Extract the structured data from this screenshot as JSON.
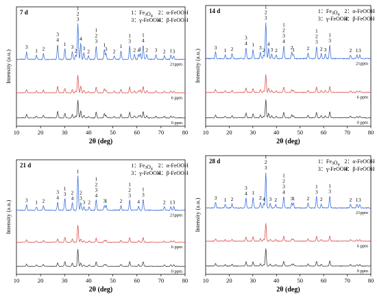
{
  "chart_data": [
    {
      "type": "line",
      "panel_label": "7 d",
      "legend": [
        "1：Fe3O4",
        "2：α-FeOOH",
        "3：γ-FeOOH",
        "4：β-FeOOH"
      ],
      "xlabel": "2θ (deg)",
      "ylabel": "Intensity (a.u.)",
      "xlim": [
        10,
        80
      ],
      "xticks": [
        10,
        20,
        30,
        40,
        50,
        60,
        70,
        80
      ],
      "series": [
        {
          "name": "21ppm",
          "color": "#3a6fd8"
        },
        {
          "name": "6 ppm",
          "color": "#d9534f"
        },
        {
          "name": "0 ppm",
          "color": "#404040"
        }
      ],
      "peaks": [
        {
          "x": 14.2,
          "h": 0.22,
          "label": "3"
        },
        {
          "x": 18.3,
          "h": 0.12,
          "label": "1"
        },
        {
          "x": 21.2,
          "h": 0.17,
          "label": "2"
        },
        {
          "x": 27.1,
          "h": 0.42,
          "label": "3\n4"
        },
        {
          "x": 30.1,
          "h": 0.3,
          "label": "1"
        },
        {
          "x": 33.2,
          "h": 0.22,
          "label": "3"
        },
        {
          "x": 34.6,
          "h": 0.12,
          "label": "2"
        },
        {
          "x": 35.5,
          "h": 1.0,
          "label": "1\n2\n3"
        },
        {
          "x": 36.7,
          "h": 0.45,
          "label": "4"
        },
        {
          "x": 38.0,
          "h": 0.18,
          "label": "3"
        },
        {
          "x": 39.9,
          "h": 0.1,
          "label": "2"
        },
        {
          "x": 43.1,
          "h": 0.38,
          "label": "1\n2\n3"
        },
        {
          "x": 46.5,
          "h": 0.28,
          "label": "1"
        },
        {
          "x": 47.2,
          "h": 0.16,
          "label": "3"
        },
        {
          "x": 50.6,
          "h": 0.1,
          "label": "2"
        },
        {
          "x": 53.4,
          "h": 0.24,
          "label": "1"
        },
        {
          "x": 57.0,
          "h": 0.38,
          "label": "1\n3"
        },
        {
          "x": 59.0,
          "h": 0.14,
          "label": "2"
        },
        {
          "x": 60.7,
          "h": 0.14,
          "label": "4"
        },
        {
          "x": 61.4,
          "h": 0.16,
          "label": "1"
        },
        {
          "x": 62.6,
          "h": 0.4,
          "label": "1\n4"
        },
        {
          "x": 64.1,
          "h": 0.14,
          "label": "2"
        },
        {
          "x": 67.9,
          "h": 0.14,
          "label": "3"
        },
        {
          "x": 71.4,
          "h": 0.1,
          "label": "2"
        },
        {
          "x": 74.1,
          "h": 0.12,
          "label": "1"
        },
        {
          "x": 75.3,
          "h": 0.1,
          "label": "3"
        }
      ]
    },
    {
      "type": "line",
      "panel_label": "14 d",
      "legend": [
        "1：Fe3O4",
        "2：α-FeOOH",
        "3：γ-FeOOH",
        "4：β-FeOOH"
      ],
      "xlabel": "2θ (deg)",
      "ylabel": "Intensity (a.u.)",
      "xlim": [
        10,
        80
      ],
      "xticks": [
        10,
        20,
        30,
        40,
        50,
        60,
        70,
        80
      ],
      "series": [
        {
          "name": "21ppm",
          "color": "#3a6fd8"
        },
        {
          "name": "6 ppm",
          "color": "#d9534f"
        },
        {
          "name": "0 ppm",
          "color": "#404040"
        }
      ],
      "peaks": [
        {
          "x": 14.2,
          "h": 0.18,
          "label": "3"
        },
        {
          "x": 18.3,
          "h": 0.1,
          "label": "1"
        },
        {
          "x": 21.2,
          "h": 0.14,
          "label": "2"
        },
        {
          "x": 27.1,
          "h": 0.3,
          "label": "3\n4"
        },
        {
          "x": 30.1,
          "h": 0.26,
          "label": "1"
        },
        {
          "x": 33.2,
          "h": 0.18,
          "label": "3"
        },
        {
          "x": 34.6,
          "h": 0.1,
          "label": "2"
        },
        {
          "x": 35.5,
          "h": 1.0,
          "label": "1\n2\n3"
        },
        {
          "x": 36.7,
          "h": 0.28,
          "label": "4"
        },
        {
          "x": 38.0,
          "h": 0.12,
          "label": "3"
        },
        {
          "x": 39.9,
          "h": 0.1,
          "label": "2"
        },
        {
          "x": 43.1,
          "h": 0.36,
          "label": "1\n2\n3\n4"
        },
        {
          "x": 46.5,
          "h": 0.18,
          "label": "2"
        },
        {
          "x": 47.2,
          "h": 0.12,
          "label": "1"
        },
        {
          "x": 53.4,
          "h": 0.16,
          "label": "2"
        },
        {
          "x": 57.0,
          "h": 0.34,
          "label": "1\n2\n3"
        },
        {
          "x": 59.0,
          "h": 0.14,
          "label": "2"
        },
        {
          "x": 60.7,
          "h": 0.12,
          "label": "3"
        },
        {
          "x": 62.6,
          "h": 0.38,
          "label": "1\n3"
        },
        {
          "x": 71.4,
          "h": 0.1,
          "label": "2"
        },
        {
          "x": 74.1,
          "h": 0.1,
          "label": "1"
        },
        {
          "x": 75.3,
          "h": 0.1,
          "label": "3"
        }
      ]
    },
    {
      "type": "line",
      "panel_label": "21 d",
      "legend": [
        "1：Fe3O4",
        "2：α-FeOOH",
        "3：γ-FeOOH",
        "4：β-FeOOH"
      ],
      "xlabel": "2θ (deg)",
      "ylabel": "Intensity (a.u.)",
      "xlim": [
        10,
        80
      ],
      "xticks": [
        10,
        20,
        30,
        40,
        50,
        60,
        70,
        80
      ],
      "series": [
        {
          "name": "21ppm",
          "color": "#3a6fd8"
        },
        {
          "name": "6 ppm",
          "color": "#d9534f"
        },
        {
          "name": "0 ppm",
          "color": "#404040"
        }
      ],
      "peaks": [
        {
          "x": 14.2,
          "h": 0.16,
          "label": "3"
        },
        {
          "x": 18.3,
          "h": 0.1,
          "label": "1"
        },
        {
          "x": 21.2,
          "h": 0.14,
          "label": "2"
        },
        {
          "x": 27.1,
          "h": 0.24,
          "label": "3\n4"
        },
        {
          "x": 30.1,
          "h": 0.34,
          "label": "1\n3"
        },
        {
          "x": 33.2,
          "h": 0.22,
          "label": "2\n4"
        },
        {
          "x": 35.5,
          "h": 1.0,
          "label": "1"
        },
        {
          "x": 36.7,
          "h": 0.22,
          "label": "2\n3"
        },
        {
          "x": 38.0,
          "h": 0.1,
          "label": "3"
        },
        {
          "x": 40.2,
          "h": 0.1,
          "label": "2"
        },
        {
          "x": 43.1,
          "h": 0.3,
          "label": "1\n2\n3\n4"
        },
        {
          "x": 46.5,
          "h": 0.14,
          "label": "3"
        },
        {
          "x": 47.2,
          "h": 0.14,
          "label": "1"
        },
        {
          "x": 53.4,
          "h": 0.14,
          "label": "2"
        },
        {
          "x": 57.0,
          "h": 0.3,
          "label": "1\n2\n3"
        },
        {
          "x": 60.7,
          "h": 0.12,
          "label": "4"
        },
        {
          "x": 62.6,
          "h": 0.32,
          "label": "1\n3"
        },
        {
          "x": 71.4,
          "h": 0.1,
          "label": "2"
        },
        {
          "x": 74.1,
          "h": 0.1,
          "label": "1"
        },
        {
          "x": 75.3,
          "h": 0.1,
          "label": "3"
        }
      ]
    },
    {
      "type": "line",
      "panel_label": "28 d",
      "legend": [
        "1：Fe3O4",
        "2：α-FeOOH",
        "3：γ-FeOOH",
        "4：β-FeOOH"
      ],
      "xlabel": "2θ (deg)",
      "ylabel": "Intensity (a.u.)",
      "xlim": [
        10,
        80
      ],
      "xticks": [
        10,
        20,
        30,
        40,
        50,
        60,
        70,
        80
      ],
      "series": [
        {
          "name": "21ppm",
          "color": "#3a6fd8"
        },
        {
          "name": "6 ppm",
          "color": "#d9534f"
        },
        {
          "name": "0 ppm",
          "color": "#404040"
        }
      ],
      "peaks": [
        {
          "x": 14.2,
          "h": 0.16,
          "label": "3"
        },
        {
          "x": 18.3,
          "h": 0.1,
          "label": "1"
        },
        {
          "x": 21.2,
          "h": 0.12,
          "label": "2"
        },
        {
          "x": 27.1,
          "h": 0.28,
          "label": "3\n4"
        },
        {
          "x": 30.1,
          "h": 0.3,
          "label": "1"
        },
        {
          "x": 33.2,
          "h": 0.16,
          "label": "2"
        },
        {
          "x": 34.6,
          "h": 0.12,
          "label": "4"
        },
        {
          "x": 35.5,
          "h": 1.0,
          "label": "1\n2\n3"
        },
        {
          "x": 37.4,
          "h": 0.12,
          "label": "3"
        },
        {
          "x": 39.7,
          "h": 0.1,
          "label": "2"
        },
        {
          "x": 43.1,
          "h": 0.32,
          "label": "1\n2\n3\n4"
        },
        {
          "x": 46.5,
          "h": 0.14,
          "label": "3"
        },
        {
          "x": 47.2,
          "h": 0.14,
          "label": "1"
        },
        {
          "x": 53.4,
          "h": 0.14,
          "label": "2"
        },
        {
          "x": 57.0,
          "h": 0.32,
          "label": "1\n3"
        },
        {
          "x": 59.0,
          "h": 0.12,
          "label": "2"
        },
        {
          "x": 62.6,
          "h": 0.34,
          "label": "1\n3"
        },
        {
          "x": 71.4,
          "h": 0.1,
          "label": "2"
        },
        {
          "x": 74.1,
          "h": 0.1,
          "label": "1"
        },
        {
          "x": 75.3,
          "h": 0.1,
          "label": "3"
        }
      ]
    }
  ]
}
